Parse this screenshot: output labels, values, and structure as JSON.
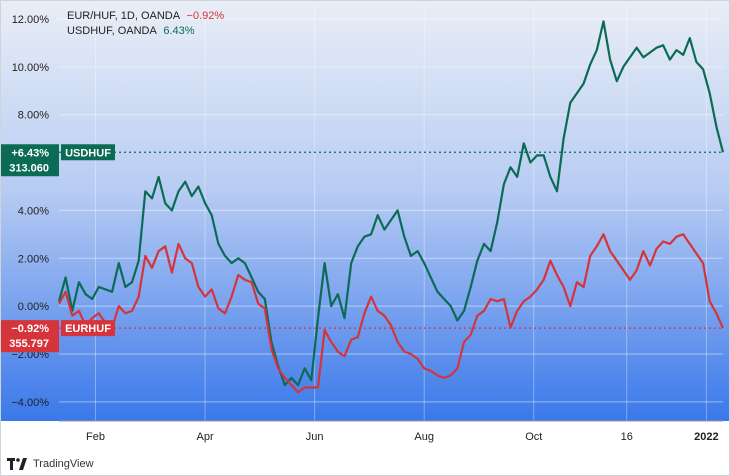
{
  "legend": {
    "line1": {
      "name": "EUR/HUF, 1D, OANDA",
      "change": "−0.92%"
    },
    "line2": {
      "name": "USDHUF, OANDA",
      "change": "6.43%"
    }
  },
  "brand": "TradingView",
  "colors": {
    "usdhuf": "#0b6b55",
    "eurhuf": "#d4343a",
    "bg_top": "#e9eef6",
    "bg_bottom": "#3a78ea"
  },
  "chart_data": {
    "type": "line",
    "xlabel": "",
    "ylabel": "",
    "ylim": [
      -4.8,
      12.5
    ],
    "xlim": [
      0,
      100
    ],
    "y_ticks": [
      {
        "v": 12,
        "label": "12.00%"
      },
      {
        "v": 10,
        "label": "10.00%"
      },
      {
        "v": 8,
        "label": "8.00%"
      },
      {
        "v": 4,
        "label": "4.00%"
      },
      {
        "v": 2,
        "label": "2.00%"
      },
      {
        "v": 0,
        "label": "0.00%"
      },
      {
        "v": -2,
        "label": "−2.00%"
      },
      {
        "v": -4,
        "label": "−4.00%"
      }
    ],
    "x_ticks": [
      {
        "x": 5.5,
        "label": "Feb",
        "bold": false
      },
      {
        "x": 22,
        "label": "Apr",
        "bold": false
      },
      {
        "x": 38.5,
        "label": "Jun",
        "bold": false
      },
      {
        "x": 55,
        "label": "Aug",
        "bold": false
      },
      {
        "x": 71.5,
        "label": "Oct",
        "bold": false
      },
      {
        "x": 85.5,
        "label": "16",
        "bold": false
      },
      {
        "x": 97.5,
        "label": "2022",
        "bold": true
      }
    ],
    "price_labels": [
      {
        "series": "USDHUF",
        "pct": "+6.43%",
        "price": "313.060",
        "tag": "USDHUF",
        "value": 6.43
      },
      {
        "series": "EURHUF",
        "pct": "−0.92%",
        "price": "355.797",
        "tag": "EURHUF",
        "value": -0.92
      }
    ],
    "series": [
      {
        "name": "USDHUF",
        "color": "#0b6b55",
        "x": [
          0,
          1,
          2,
          3,
          4,
          5,
          6,
          7,
          8,
          9,
          10,
          11,
          12,
          13,
          14,
          15,
          16,
          17,
          18,
          19,
          20,
          21,
          22,
          23,
          24,
          25,
          26,
          27,
          28,
          29,
          30,
          31,
          32,
          33,
          34,
          35,
          36,
          37,
          38,
          39,
          40,
          41,
          42,
          43,
          44,
          45,
          46,
          47,
          48,
          49,
          50,
          51,
          52,
          53,
          54,
          55,
          56,
          57,
          58,
          59,
          60,
          61,
          62,
          63,
          64,
          65,
          66,
          67,
          68,
          69,
          70,
          71,
          72,
          73,
          74,
          75,
          76,
          77,
          78,
          79,
          80,
          81,
          82,
          83,
          84,
          85,
          86,
          87,
          88,
          89,
          90,
          91,
          92,
          93,
          94,
          95,
          96,
          97,
          98,
          99,
          100
        ],
        "values": [
          0.2,
          1.2,
          -0.2,
          1,
          0.5,
          0.3,
          0.8,
          0.7,
          0.6,
          1.8,
          0.8,
          1,
          1.9,
          4.8,
          4.5,
          5.4,
          4.3,
          4,
          4.8,
          5.2,
          4.6,
          5,
          4.3,
          3.8,
          2.6,
          2.1,
          1.8,
          2,
          1.8,
          1.2,
          0.6,
          0.3,
          -1.5,
          -2.5,
          -3.3,
          -3,
          -3.3,
          -2.6,
          -3.1,
          -0.5,
          1.8,
          0,
          0.5,
          -0.5,
          1.8,
          2.5,
          2.9,
          3,
          3.8,
          3.2,
          3.6,
          4,
          2.9,
          2.1,
          2.3,
          1.8,
          1.2,
          0.6,
          0.3,
          0,
          -0.6,
          -0.2,
          0.8,
          1.9,
          2.6,
          2.3,
          3.5,
          5.1,
          5.8,
          5.4,
          6.8,
          6,
          6.3,
          6.3,
          5.4,
          4.8,
          7,
          8.5,
          8.9,
          9.3,
          10.1,
          10.7,
          11.9,
          10.3,
          9.4,
          10,
          10.4,
          10.8,
          10.4,
          10.6,
          10.8,
          10.9,
          10.3,
          10.7,
          10.5,
          11.2,
          10.2,
          9.9,
          8.9,
          7.5,
          6.43
        ]
      },
      {
        "name": "EURHUF",
        "color": "#d4343a",
        "x": [
          0,
          1,
          2,
          3,
          4,
          5,
          6,
          7,
          8,
          9,
          10,
          11,
          12,
          13,
          14,
          15,
          16,
          17,
          18,
          19,
          20,
          21,
          22,
          23,
          24,
          25,
          26,
          27,
          28,
          29,
          30,
          31,
          32,
          33,
          34,
          35,
          36,
          37,
          38,
          39,
          40,
          41,
          42,
          43,
          44,
          45,
          46,
          47,
          48,
          49,
          50,
          51,
          52,
          53,
          54,
          55,
          56,
          57,
          58,
          59,
          60,
          61,
          62,
          63,
          64,
          65,
          66,
          67,
          68,
          69,
          70,
          71,
          72,
          73,
          74,
          75,
          76,
          77,
          78,
          79,
          80,
          81,
          82,
          83,
          84,
          85,
          86,
          87,
          88,
          89,
          90,
          91,
          92,
          93,
          94,
          95,
          96,
          97,
          98,
          99,
          100
        ],
        "values": [
          0.1,
          0.6,
          -0.4,
          -0.2,
          -0.8,
          -0.5,
          -0.3,
          -0.7,
          -0.9,
          0,
          -0.3,
          -0.2,
          0.4,
          2.1,
          1.6,
          2.3,
          2.5,
          1.4,
          2.6,
          2,
          1.8,
          0.8,
          0.4,
          0.7,
          -0.1,
          -0.3,
          0.4,
          1.3,
          1.1,
          1,
          0.1,
          -0.1,
          -1.8,
          -2.6,
          -3,
          -3.3,
          -3.6,
          -3.4,
          -3.4,
          -3.4,
          -1,
          -1.5,
          -1.9,
          -2.1,
          -1.4,
          -1.3,
          -0.3,
          0.4,
          -0.2,
          -0.4,
          -0.8,
          -1.5,
          -1.9,
          -2,
          -2.2,
          -2.6,
          -2.7,
          -2.9,
          -3,
          -2.9,
          -2.6,
          -1.5,
          -1.2,
          -0.4,
          -0.2,
          0.3,
          0.2,
          0.3,
          -0.9,
          -0.2,
          0.2,
          0.4,
          0.7,
          1.1,
          1.9,
          1.3,
          0.8,
          0,
          1,
          0.8,
          2.1,
          2.5,
          3,
          2.3,
          1.9,
          1.5,
          1.1,
          1.5,
          2.3,
          1.7,
          2.4,
          2.7,
          2.6,
          2.9,
          3,
          2.6,
          2.2,
          1.8,
          0.2,
          -0.3,
          -0.92
        ]
      }
    ]
  }
}
